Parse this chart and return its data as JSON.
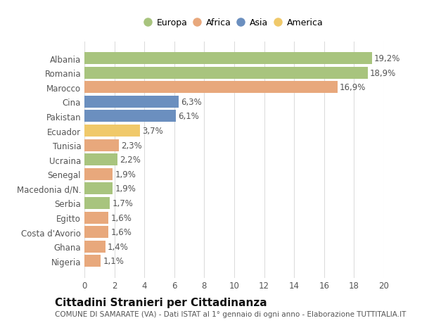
{
  "categories": [
    "Albania",
    "Romania",
    "Marocco",
    "Cina",
    "Pakistan",
    "Ecuador",
    "Tunisia",
    "Ucraina",
    "Senegal",
    "Macedonia d/N.",
    "Serbia",
    "Egitto",
    "Costa d'Avorio",
    "Ghana",
    "Nigeria"
  ],
  "values": [
    19.2,
    18.9,
    16.9,
    6.3,
    6.1,
    3.7,
    2.3,
    2.2,
    1.9,
    1.9,
    1.7,
    1.6,
    1.6,
    1.4,
    1.1
  ],
  "labels": [
    "19,2%",
    "18,9%",
    "16,9%",
    "6,3%",
    "6,1%",
    "3,7%",
    "2,3%",
    "2,2%",
    "1,9%",
    "1,9%",
    "1,7%",
    "1,6%",
    "1,6%",
    "1,4%",
    "1,1%"
  ],
  "continents": [
    "Europa",
    "Europa",
    "Africa",
    "Asia",
    "Asia",
    "America",
    "Africa",
    "Europa",
    "Africa",
    "Europa",
    "Europa",
    "Africa",
    "Africa",
    "Africa",
    "Africa"
  ],
  "colors": {
    "Europa": "#a8c47e",
    "Africa": "#e8a87c",
    "Asia": "#6b8fbf",
    "America": "#f0c96a"
  },
  "xlim": [
    0,
    20
  ],
  "xticks": [
    0,
    2,
    4,
    6,
    8,
    10,
    12,
    14,
    16,
    18,
    20
  ],
  "title": "Cittadini Stranieri per Cittadinanza",
  "subtitle": "COMUNE DI SAMARATE (VA) - Dati ISTAT al 1° gennaio di ogni anno - Elaborazione TUTTITALIA.IT",
  "background_color": "#ffffff",
  "grid_color": "#dddddd",
  "bar_height": 0.82,
  "label_fontsize": 8.5,
  "tick_fontsize": 8.5,
  "title_fontsize": 11,
  "subtitle_fontsize": 7.5
}
